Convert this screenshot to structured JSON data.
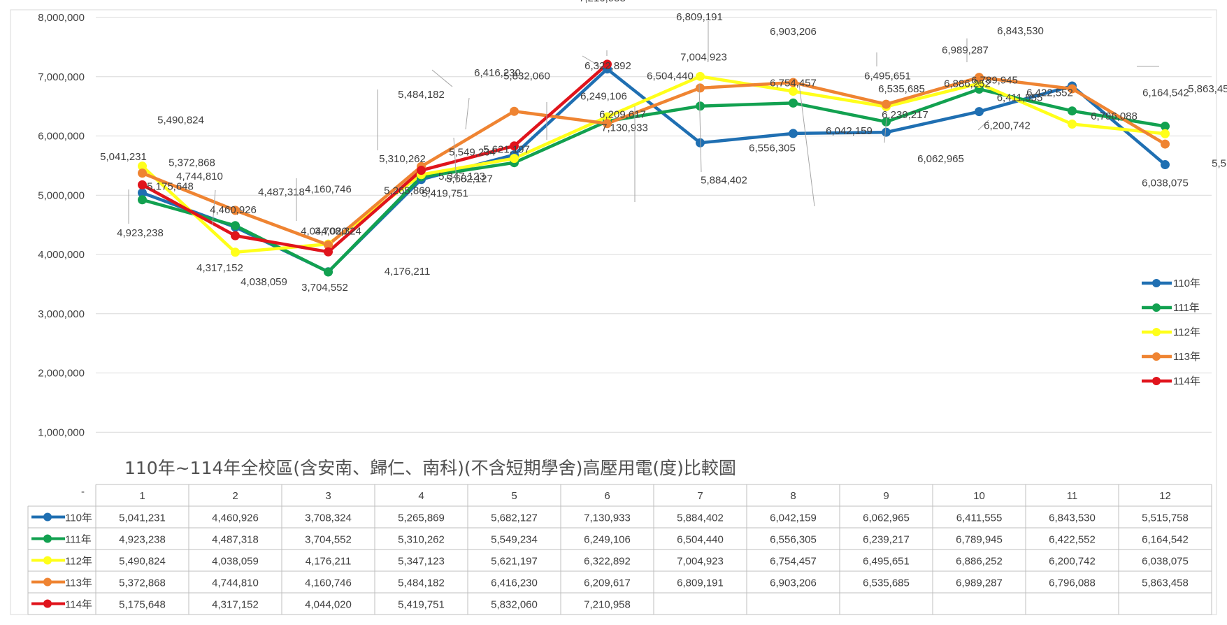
{
  "chart_data": {
    "type": "line",
    "title": "110年~114年全校區(含安南、歸仁、南科)(不含短期學舍)高壓用電(度)比較圖",
    "xlabel": "",
    "ylabel": "",
    "categories": [
      "1",
      "2",
      "3",
      "4",
      "5",
      "6",
      "7",
      "8",
      "9",
      "10",
      "11",
      "12"
    ],
    "ylim": [
      0,
      8000000
    ],
    "yticks": [
      0,
      1000000,
      2000000,
      3000000,
      4000000,
      5000000,
      6000000,
      7000000,
      8000000
    ],
    "ytick_labels": [
      "-",
      "1,000,000",
      "2,000,000",
      "3,000,000",
      "4,000,000",
      "5,000,000",
      "6,000,000",
      "7,000,000",
      "8,000,000"
    ],
    "grid": true,
    "legend_position": "right",
    "series": [
      {
        "name": "110年",
        "color": "#1f6fb2",
        "values": [
          5041231,
          4460926,
          3708324,
          5265869,
          5682127,
          7130933,
          5884402,
          6042159,
          6062965,
          6411555,
          6843530,
          5515758
        ],
        "labels": [
          "5,041,231",
          "4,460,926",
          "3,708,324",
          "5,265,869",
          "5,682,127",
          "7,130,933",
          "5,884,402",
          "6,042,159",
          "6,062,965",
          "6,411,555",
          "6,843,530",
          "5,515,758"
        ]
      },
      {
        "name": "111年",
        "color": "#12a150",
        "values": [
          4923238,
          4487318,
          3704552,
          5310262,
          5549234,
          6249106,
          6504440,
          6556305,
          6239217,
          6789945,
          6422552,
          6164542
        ],
        "labels": [
          "4,923,238",
          "4,487,318",
          "3,704,552",
          "5,310,262",
          "5,549,234",
          "6,249,106",
          "6,504,440",
          "6,556,305",
          "6,239,217",
          "6,789,945",
          "6,422,552",
          "6,164,542"
        ]
      },
      {
        "name": "112年",
        "color": "#ffff1a",
        "values": [
          5490824,
          4038059,
          4176211,
          5347123,
          5621197,
          6322892,
          7004923,
          6754457,
          6495651,
          6886252,
          6200742,
          6038075
        ],
        "labels": [
          "5,490,824",
          "4,038,059",
          "4,176,211",
          "5,347,123",
          "5,621,197",
          "6,322,892",
          "7,004,923",
          "6,754,457",
          "6,495,651",
          "6,886,252",
          "6,200,742",
          "6,038,075"
        ]
      },
      {
        "name": "113年",
        "color": "#ef8432",
        "values": [
          5372868,
          4744810,
          4160746,
          5484182,
          6416230,
          6209617,
          6809191,
          6903206,
          6535685,
          6989287,
          6796088,
          5863458
        ],
        "labels": [
          "5,372,868",
          "4,744,810",
          "4,160,746",
          "5,484,182",
          "6,416,230",
          "6,209,617",
          "6,809,191",
          "6,903,206",
          "6,535,685",
          "6,989,287",
          "6,796,088",
          "5,863,458"
        ]
      },
      {
        "name": "114年",
        "color": "#e0141c",
        "values": [
          5175648,
          4317152,
          4044020,
          5419751,
          5832060,
          7210958,
          null,
          null,
          null,
          null,
          null,
          null
        ],
        "labels": [
          "5,175,648",
          "4,317,152",
          "4,044,020",
          "5,419,751",
          "5,832,060",
          "7,210,958",
          "",
          "",
          "",
          "",
          "",
          ""
        ]
      }
    ]
  }
}
